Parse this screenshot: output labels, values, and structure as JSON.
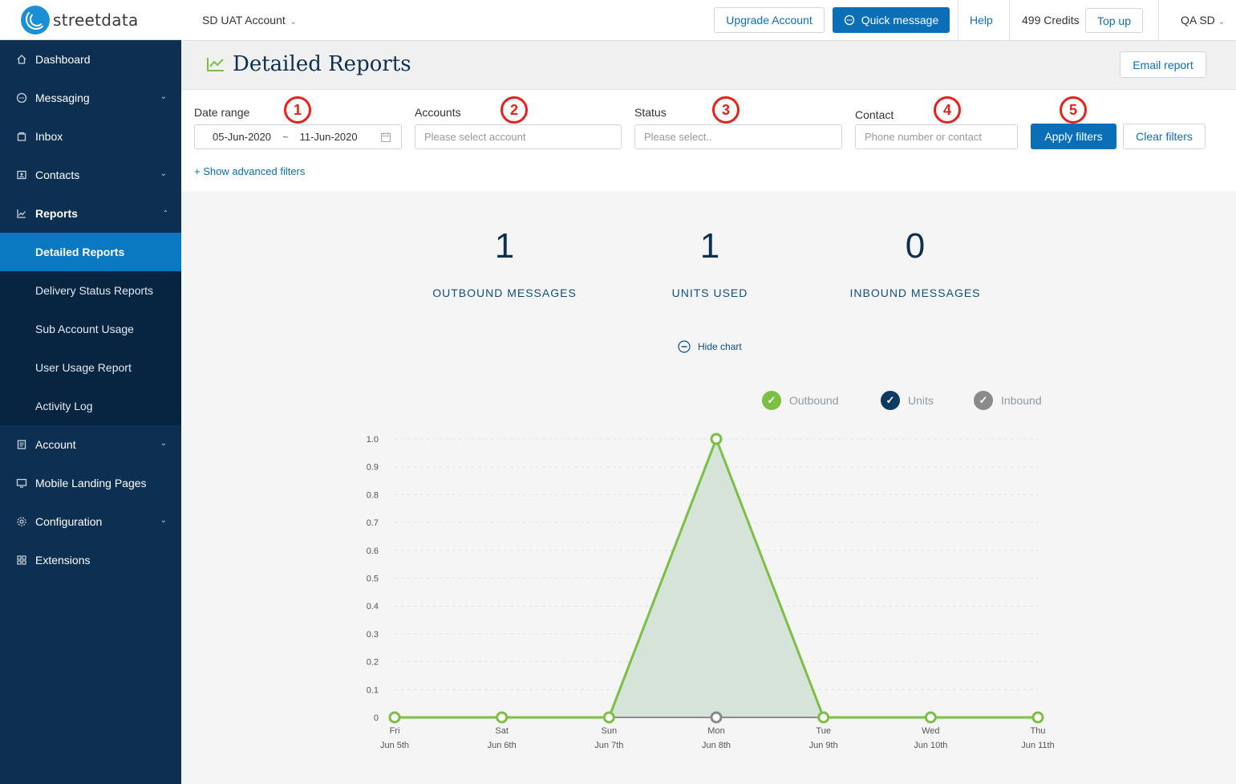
{
  "brand": {
    "logo_text": "streetdata"
  },
  "sidebar": {
    "items": [
      {
        "label": "Dashboard",
        "icon": "home-icon"
      },
      {
        "label": "Messaging",
        "icon": "chat-icon"
      },
      {
        "label": "Inbox",
        "icon": "inbox-icon"
      },
      {
        "label": "Contacts",
        "icon": "contacts-icon"
      },
      {
        "label": "Reports",
        "icon": "chart-icon"
      },
      {
        "label": "Account",
        "icon": "account-icon"
      },
      {
        "label": "Mobile Landing Pages",
        "icon": "monitor-icon"
      },
      {
        "label": "Configuration",
        "icon": "gear-icon"
      },
      {
        "label": "Extensions",
        "icon": "grid-icon"
      }
    ],
    "reports_sub": [
      "Detailed Reports",
      "Delivery Status Reports",
      "Sub Account Usage",
      "User Usage Report",
      "Activity Log"
    ]
  },
  "topbar": {
    "account": "SD UAT Account",
    "upgrade": "Upgrade Account",
    "quick_message": "Quick message",
    "help": "Help",
    "credits": "499 Credits",
    "top_up": "Top up",
    "user": "QA SD"
  },
  "page": {
    "title": "Detailed Reports",
    "email_report": "Email report"
  },
  "filters": {
    "date_label": "Date range",
    "date_from": "05-Jun-2020",
    "date_sep": "~",
    "date_to": "11-Jun-2020",
    "accounts_label": "Accounts",
    "accounts_placeholder": "Please select account",
    "status_label": "Status",
    "status_placeholder": "Please select..",
    "contact_label": "Contact",
    "contact_placeholder": "Phone number or contact",
    "apply": "Apply filters",
    "clear": "Clear filters",
    "advanced": "+ Show advanced filters",
    "badges": [
      "1",
      "2",
      "3",
      "4",
      "5"
    ]
  },
  "stats": [
    {
      "value": "1",
      "label": "OUTBOUND MESSAGES"
    },
    {
      "value": "1",
      "label": "UNITS USED"
    },
    {
      "value": "0",
      "label": "INBOUND MESSAGES"
    }
  ],
  "hide_chart": "Hide chart",
  "colors": {
    "outbound": "#7bbf44",
    "units": "#0d3a63",
    "inbound": "#8a8a8a",
    "primary": "#0b6fb8"
  },
  "chart_data": {
    "type": "area",
    "categories": [
      [
        "Fri",
        "Jun 5th"
      ],
      [
        "Sat",
        "Jun 6th"
      ],
      [
        "Sun",
        "Jun 7th"
      ],
      [
        "Mon",
        "Jun 8th"
      ],
      [
        "Tue",
        "Jun 9th"
      ],
      [
        "Wed",
        "Jun 10th"
      ],
      [
        "Thu",
        "Jun 11th"
      ]
    ],
    "yticks": [
      "0",
      "0.1",
      "0.2",
      "0.3",
      "0.4",
      "0.5",
      "0.6",
      "0.7",
      "0.8",
      "0.9",
      "1.0"
    ],
    "ylim": [
      0,
      1
    ],
    "series": [
      {
        "name": "Outbound",
        "values": [
          0,
          0,
          0,
          1,
          0,
          0,
          0
        ]
      },
      {
        "name": "Units",
        "values": [
          0,
          0,
          0,
          1,
          0,
          0,
          0
        ]
      },
      {
        "name": "Inbound",
        "values": [
          0,
          0,
          0,
          0,
          0,
          0,
          0
        ]
      }
    ]
  }
}
